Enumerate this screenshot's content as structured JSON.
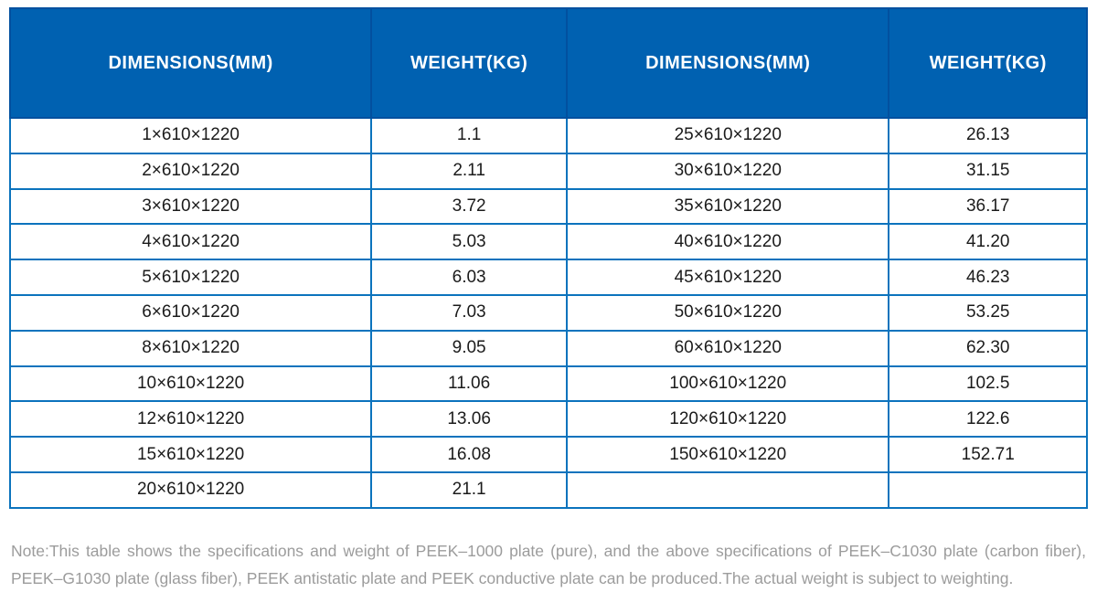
{
  "table": {
    "headers": [
      "DIMENSIONS(MM)",
      "WEIGHT(KG)",
      "DIMENSIONS(MM)",
      "WEIGHT(KG)"
    ],
    "rows": [
      [
        "1×610×1220",
        "1.1",
        "25×610×1220",
        "26.13"
      ],
      [
        "2×610×1220",
        "2.11",
        "30×610×1220",
        "31.15"
      ],
      [
        "3×610×1220",
        "3.72",
        "35×610×1220",
        "36.17"
      ],
      [
        "4×610×1220",
        "5.03",
        "40×610×1220",
        "41.20"
      ],
      [
        "5×610×1220",
        "6.03",
        "45×610×1220",
        "46.23"
      ],
      [
        "6×610×1220",
        "7.03",
        "50×610×1220",
        "53.25"
      ],
      [
        "8×610×1220",
        "9.05",
        "60×610×1220",
        "62.30"
      ],
      [
        "10×610×1220",
        "11.06",
        "100×610×1220",
        "102.5"
      ],
      [
        "12×610×1220",
        "13.06",
        "120×610×1220",
        "122.6"
      ],
      [
        "15×610×1220",
        "16.08",
        "150×610×1220",
        "152.71"
      ],
      [
        "20×610×1220",
        "21.1",
        "",
        ""
      ]
    ]
  },
  "note": "Note:This table shows the specifications and weight of PEEK–1000 plate (pure), and the above specifications of PEEK–C1030 plate (carbon fiber), PEEK–G1030 plate (glass fiber), PEEK antistatic plate and PEEK conductive plate can be produced.The actual weight is subject to weighting.",
  "colors": {
    "header_bg": "#0061b1",
    "header_border": "#02509f",
    "grid_line": "#0b73bd",
    "header_text": "#ffffff",
    "cell_text": "#1b1b1b",
    "note_text": "#9c9c9c"
  }
}
